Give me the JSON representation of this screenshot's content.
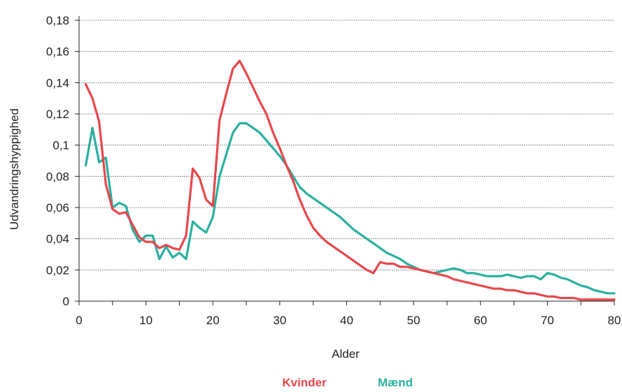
{
  "chart_data": {
    "type": "line",
    "xlabel": "Alder",
    "ylabel": "Udvandringshyppighed",
    "xlim": [
      0,
      80
    ],
    "ylim": [
      0,
      0.18
    ],
    "xticks": [
      "0",
      "10",
      "20",
      "30",
      "40",
      "50",
      "60",
      "70",
      "80"
    ],
    "yticks": [
      "0",
      "0,02",
      "0,04",
      "0,06",
      "0,08",
      "0,1",
      "0,12",
      "0,14",
      "0,16",
      "0,18"
    ],
    "grid": "horizontal dotted",
    "legend_position": "bottom-center",
    "series": [
      {
        "name": "Kvinder",
        "color": "#e8474c",
        "points": [
          [
            1,
            0.139
          ],
          [
            2,
            0.13
          ],
          [
            3,
            0.115
          ],
          [
            4,
            0.075
          ],
          [
            5,
            0.059
          ],
          [
            6,
            0.056
          ],
          [
            7,
            0.057
          ],
          [
            8,
            0.049
          ],
          [
            9,
            0.041
          ],
          [
            10,
            0.038
          ],
          [
            11,
            0.038
          ],
          [
            12,
            0.034
          ],
          [
            13,
            0.036
          ],
          [
            14,
            0.034
          ],
          [
            15,
            0.033
          ],
          [
            16,
            0.042
          ],
          [
            17,
            0.085
          ],
          [
            18,
            0.079
          ],
          [
            19,
            0.065
          ],
          [
            20,
            0.061
          ],
          [
            21,
            0.116
          ],
          [
            22,
            0.133
          ],
          [
            23,
            0.149
          ],
          [
            24,
            0.154
          ],
          [
            25,
            0.146
          ],
          [
            26,
            0.137
          ],
          [
            27,
            0.128
          ],
          [
            28,
            0.12
          ],
          [
            29,
            0.108
          ],
          [
            30,
            0.098
          ],
          [
            31,
            0.087
          ],
          [
            32,
            0.077
          ],
          [
            33,
            0.065
          ],
          [
            34,
            0.055
          ],
          [
            35,
            0.047
          ],
          [
            36,
            0.042
          ],
          [
            37,
            0.038
          ],
          [
            38,
            0.035
          ],
          [
            39,
            0.032
          ],
          [
            40,
            0.029
          ],
          [
            41,
            0.026
          ],
          [
            42,
            0.023
          ],
          [
            43,
            0.02
          ],
          [
            44,
            0.018
          ],
          [
            45,
            0.025
          ],
          [
            46,
            0.024
          ],
          [
            47,
            0.024
          ],
          [
            48,
            0.022
          ],
          [
            49,
            0.022
          ],
          [
            50,
            0.021
          ],
          [
            51,
            0.02
          ],
          [
            52,
            0.019
          ],
          [
            53,
            0.018
          ],
          [
            54,
            0.017
          ],
          [
            55,
            0.016
          ],
          [
            56,
            0.014
          ],
          [
            57,
            0.013
          ],
          [
            58,
            0.012
          ],
          [
            59,
            0.011
          ],
          [
            60,
            0.01
          ],
          [
            61,
            0.009
          ],
          [
            62,
            0.008
          ],
          [
            63,
            0.008
          ],
          [
            64,
            0.007
          ],
          [
            65,
            0.007
          ],
          [
            66,
            0.006
          ],
          [
            67,
            0.005
          ],
          [
            68,
            0.005
          ],
          [
            69,
            0.004
          ],
          [
            70,
            0.003
          ],
          [
            71,
            0.003
          ],
          [
            72,
            0.002
          ],
          [
            73,
            0.002
          ],
          [
            74,
            0.002
          ],
          [
            75,
            0.001
          ],
          [
            76,
            0.001
          ],
          [
            77,
            0.001
          ],
          [
            78,
            0.001
          ],
          [
            79,
            0.001
          ],
          [
            80,
            0.001
          ]
        ]
      },
      {
        "name": "Mænd",
        "color": "#2ab0a0",
        "points": [
          [
            1,
            0.087
          ],
          [
            2,
            0.111
          ],
          [
            3,
            0.089
          ],
          [
            4,
            0.092
          ],
          [
            5,
            0.06
          ],
          [
            6,
            0.063
          ],
          [
            7,
            0.061
          ],
          [
            8,
            0.046
          ],
          [
            9,
            0.038
          ],
          [
            10,
            0.042
          ],
          [
            11,
            0.042
          ],
          [
            12,
            0.027
          ],
          [
            13,
            0.035
          ],
          [
            14,
            0.028
          ],
          [
            15,
            0.031
          ],
          [
            16,
            0.027
          ],
          [
            17,
            0.051
          ],
          [
            18,
            0.047
          ],
          [
            19,
            0.044
          ],
          [
            20,
            0.054
          ],
          [
            21,
            0.08
          ],
          [
            22,
            0.094
          ],
          [
            23,
            0.108
          ],
          [
            24,
            0.114
          ],
          [
            25,
            0.114
          ],
          [
            26,
            0.111
          ],
          [
            27,
            0.108
          ],
          [
            28,
            0.103
          ],
          [
            29,
            0.098
          ],
          [
            30,
            0.093
          ],
          [
            31,
            0.087
          ],
          [
            32,
            0.08
          ],
          [
            33,
            0.073
          ],
          [
            34,
            0.069
          ],
          [
            35,
            0.066
          ],
          [
            36,
            0.063
          ],
          [
            37,
            0.06
          ],
          [
            38,
            0.057
          ],
          [
            39,
            0.054
          ],
          [
            40,
            0.05
          ],
          [
            41,
            0.046
          ],
          [
            42,
            0.043
          ],
          [
            43,
            0.04
          ],
          [
            44,
            0.037
          ],
          [
            45,
            0.034
          ],
          [
            46,
            0.031
          ],
          [
            47,
            0.029
          ],
          [
            48,
            0.027
          ],
          [
            49,
            0.024
          ],
          [
            50,
            0.022
          ],
          [
            51,
            0.02
          ],
          [
            52,
            0.019
          ],
          [
            53,
            0.018
          ],
          [
            54,
            0.019
          ],
          [
            55,
            0.02
          ],
          [
            56,
            0.021
          ],
          [
            57,
            0.02
          ],
          [
            58,
            0.018
          ],
          [
            59,
            0.018
          ],
          [
            60,
            0.017
          ],
          [
            61,
            0.016
          ],
          [
            62,
            0.016
          ],
          [
            63,
            0.016
          ],
          [
            64,
            0.017
          ],
          [
            65,
            0.016
          ],
          [
            66,
            0.015
          ],
          [
            67,
            0.016
          ],
          [
            68,
            0.016
          ],
          [
            69,
            0.014
          ],
          [
            70,
            0.018
          ],
          [
            71,
            0.017
          ],
          [
            72,
            0.015
          ],
          [
            73,
            0.014
          ],
          [
            74,
            0.012
          ],
          [
            75,
            0.01
          ],
          [
            76,
            0.009
          ],
          [
            77,
            0.007
          ],
          [
            78,
            0.006
          ],
          [
            79,
            0.005
          ],
          [
            80,
            0.005
          ]
        ]
      }
    ]
  }
}
